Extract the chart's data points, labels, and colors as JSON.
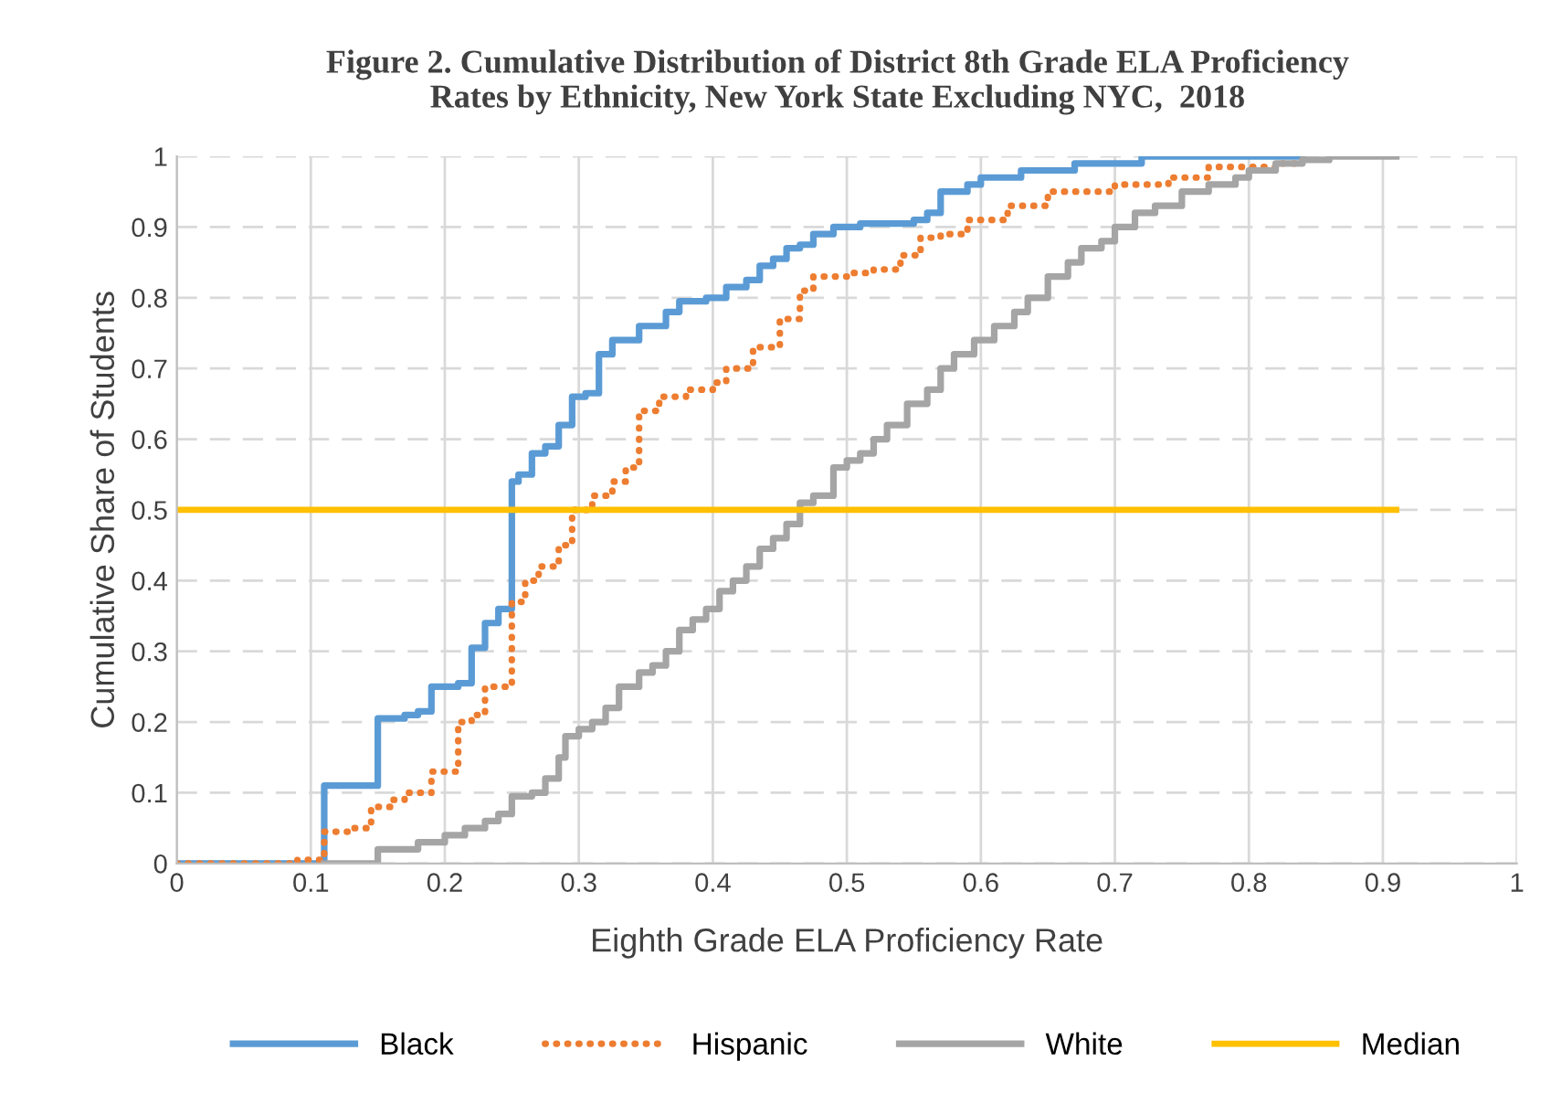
{
  "chart_data": {
    "type": "step",
    "title": "Figure 2. Cumulative Distribution of District 8th Grade ELA Proficiency\nRates by Ethnicity, New York State Excluding NYC,  2018",
    "xlabel": "Eighth Grade ELA Proficiency Rate",
    "ylabel": "Cumulative Share of Students",
    "xlim": [
      0,
      1
    ],
    "ylim": [
      0,
      1
    ],
    "xticks": [
      0,
      0.1,
      0.2,
      0.3,
      0.4,
      0.5,
      0.6,
      0.7,
      0.8,
      0.9,
      1
    ],
    "yticks": [
      0,
      0.1,
      0.2,
      0.3,
      0.4,
      0.5,
      0.6,
      0.7,
      0.8,
      0.9,
      1
    ],
    "grid": true,
    "legend": "bottom",
    "marker": "none",
    "series": [
      {
        "name": "Black",
        "color": "#5b9bd5",
        "line_style": "solid",
        "x": [
          0,
          0.11,
          0.15,
          0.17,
          0.18,
          0.19,
          0.21,
          0.22,
          0.23,
          0.24,
          0.25,
          0.255,
          0.265,
          0.275,
          0.285,
          0.295,
          0.305,
          0.315,
          0.325,
          0.345,
          0.365,
          0.375,
          0.395,
          0.41,
          0.425,
          0.435,
          0.445,
          0.455,
          0.465,
          0.475,
          0.49,
          0.51,
          0.55,
          0.56,
          0.57,
          0.59,
          0.6,
          0.63,
          0.67,
          0.72,
          0.84
        ],
        "values": [
          0,
          0.11,
          0.205,
          0.21,
          0.215,
          0.25,
          0.255,
          0.305,
          0.34,
          0.36,
          0.54,
          0.55,
          0.58,
          0.59,
          0.62,
          0.66,
          0.665,
          0.72,
          0.74,
          0.76,
          0.78,
          0.795,
          0.8,
          0.815,
          0.825,
          0.845,
          0.855,
          0.87,
          0.875,
          0.89,
          0.9,
          0.905,
          0.91,
          0.92,
          0.95,
          0.96,
          0.97,
          0.98,
          0.99,
          1,
          1
        ]
      },
      {
        "name": "Hispanic",
        "color": "#ed7d31",
        "line_style": "dotted",
        "x": [
          0,
          0.09,
          0.11,
          0.13,
          0.145,
          0.16,
          0.17,
          0.19,
          0.21,
          0.22,
          0.23,
          0.25,
          0.26,
          0.27,
          0.285,
          0.295,
          0.31,
          0.325,
          0.335,
          0.345,
          0.36,
          0.38,
          0.4,
          0.41,
          0.43,
          0.45,
          0.465,
          0.475,
          0.5,
          0.52,
          0.54,
          0.555,
          0.57,
          0.59,
          0.62,
          0.65,
          0.7,
          0.74,
          0.77,
          0.82,
          0.84
        ],
        "values": [
          0,
          0.005,
          0.045,
          0.05,
          0.08,
          0.09,
          0.1,
          0.13,
          0.2,
          0.21,
          0.25,
          0.37,
          0.4,
          0.42,
          0.45,
          0.5,
          0.52,
          0.54,
          0.56,
          0.64,
          0.66,
          0.67,
          0.68,
          0.7,
          0.73,
          0.77,
          0.81,
          0.83,
          0.835,
          0.84,
          0.86,
          0.885,
          0.89,
          0.91,
          0.93,
          0.95,
          0.96,
          0.97,
          0.985,
          0.99,
          1
        ]
      },
      {
        "name": "White",
        "color": "#a5a5a5",
        "line_style": "solid",
        "x": [
          0.11,
          0.15,
          0.18,
          0.2,
          0.215,
          0.23,
          0.24,
          0.25,
          0.265,
          0.275,
          0.285,
          0.29,
          0.3,
          0.31,
          0.32,
          0.33,
          0.345,
          0.355,
          0.365,
          0.375,
          0.385,
          0.395,
          0.405,
          0.415,
          0.425,
          0.435,
          0.445,
          0.455,
          0.465,
          0.475,
          0.49,
          0.5,
          0.51,
          0.52,
          0.53,
          0.545,
          0.56,
          0.57,
          0.58,
          0.595,
          0.61,
          0.625,
          0.635,
          0.65,
          0.665,
          0.675,
          0.69,
          0.7,
          0.715,
          0.73,
          0.75,
          0.77,
          0.79,
          0.8,
          0.82,
          0.84,
          0.86,
          0.91
        ],
        "values": [
          0,
          0.02,
          0.03,
          0.04,
          0.05,
          0.06,
          0.07,
          0.095,
          0.1,
          0.12,
          0.15,
          0.18,
          0.19,
          0.2,
          0.22,
          0.25,
          0.27,
          0.28,
          0.3,
          0.33,
          0.345,
          0.36,
          0.385,
          0.4,
          0.42,
          0.445,
          0.46,
          0.48,
          0.51,
          0.52,
          0.56,
          0.57,
          0.58,
          0.6,
          0.62,
          0.65,
          0.67,
          0.7,
          0.72,
          0.74,
          0.76,
          0.78,
          0.8,
          0.83,
          0.85,
          0.87,
          0.88,
          0.9,
          0.92,
          0.93,
          0.95,
          0.96,
          0.97,
          0.98,
          0.99,
          0.995,
          1,
          1
        ]
      },
      {
        "name": "Median",
        "type": "line",
        "color": "#ffc000",
        "line_style": "solid",
        "x": [
          0,
          0.91
        ],
        "values": [
          0.5,
          0.5
        ]
      }
    ]
  }
}
